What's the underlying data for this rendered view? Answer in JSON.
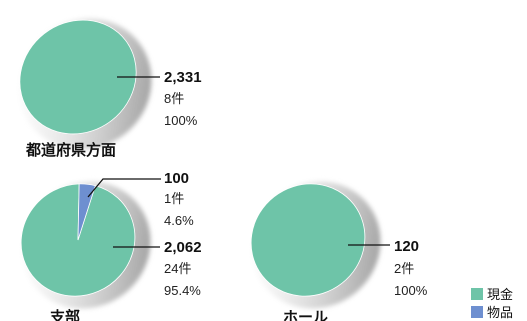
{
  "chart_data": [
    {
      "type": "pie",
      "title": "都道府県方面",
      "colors": [
        "#6ec4a8"
      ],
      "slices": [
        {
          "category": "現金",
          "amount": "2,331",
          "count": "8件",
          "percent": "100%",
          "value": 100
        }
      ]
    },
    {
      "type": "pie",
      "title": "支部",
      "colors": [
        "#6ec4a8",
        "#6e8fd0"
      ],
      "slices": [
        {
          "category": "現金",
          "amount": "2,062",
          "count": "24件",
          "percent": "95.4%",
          "value": 95.4
        },
        {
          "category": "物品",
          "amount": "100",
          "count": "1件",
          "percent": "4.6%",
          "value": 4.6
        }
      ]
    },
    {
      "type": "pie",
      "title": "ホール",
      "colors": [
        "#6ec4a8"
      ],
      "slices": [
        {
          "category": "現金",
          "amount": "120",
          "count": "2件",
          "percent": "100%",
          "value": 100
        }
      ]
    }
  ],
  "legend": {
    "position": "bottom-right",
    "items": [
      {
        "label": "現金",
        "color": "#6ec4a8"
      },
      {
        "label": "物品",
        "color": "#6e8fd0"
      }
    ]
  }
}
